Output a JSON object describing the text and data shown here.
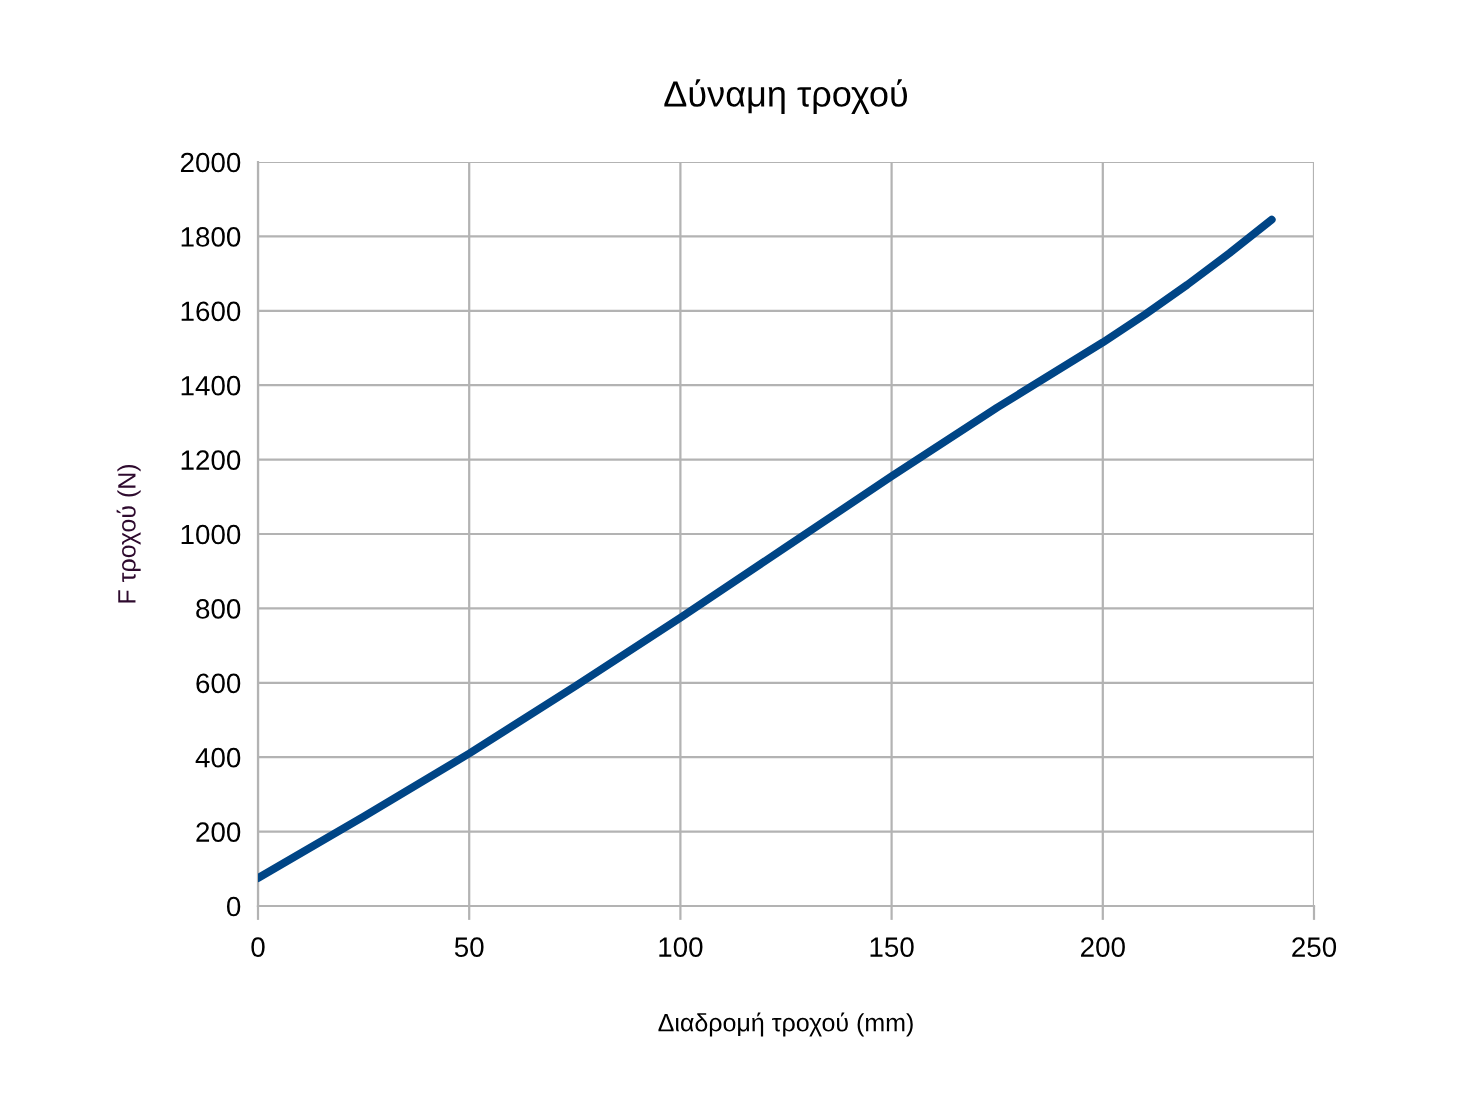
{
  "chart_data": {
    "type": "line",
    "title": "Δύναμη τροχού",
    "xlabel": "Διαδρομή τροχού (mm)",
    "ylabel": "F τροχού (N)",
    "x": [
      0,
      25,
      50,
      75,
      100,
      125,
      150,
      175,
      200,
      210,
      220,
      230,
      240
    ],
    "series": [
      {
        "color": "#004586",
        "values": [
          75,
          240,
          410,
          590,
          775,
          965,
          1155,
          1340,
          1515,
          1590,
          1670,
          1755,
          1845
        ]
      }
    ],
    "xlim": [
      0,
      250
    ],
    "xticks": [
      0,
      50,
      100,
      150,
      200,
      250
    ],
    "ylim": [
      0,
      2000
    ],
    "yticks": [
      0,
      200,
      400,
      600,
      800,
      1000,
      1200,
      1400,
      1600,
      1800,
      2000
    ],
    "grid": true,
    "legend": false,
    "marker": "none",
    "line_style": "solid"
  }
}
